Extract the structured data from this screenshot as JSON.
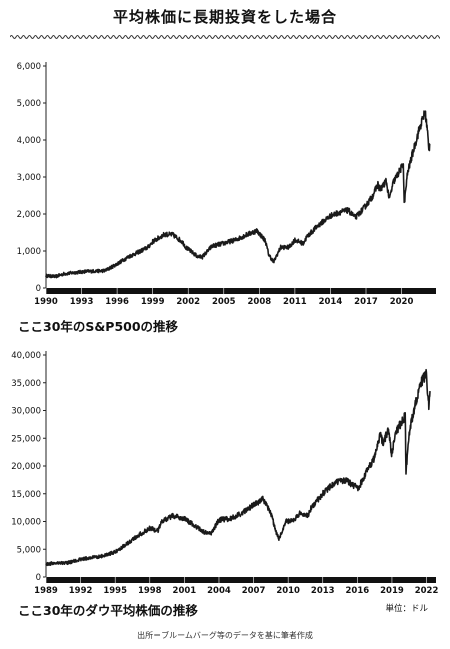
{
  "title": "平均株価に長期投資をした場合",
  "unit_label": "単位：ドル",
  "source": "出所＝ブルームバーグ等のデータを基に筆者作成",
  "line_color": "#1a1a1a",
  "chart_data": [
    {
      "type": "line",
      "caption": "ここ30年のS&P500の推移",
      "xlim": [
        1990,
        2022.4
      ],
      "ylim": [
        0,
        6000
      ],
      "yticks": [
        0,
        1000,
        2000,
        3000,
        4000,
        5000,
        6000
      ],
      "ytick_labels": [
        "0",
        "1,000",
        "2,000",
        "3,000",
        "4,000",
        "5,000",
        "6,000"
      ],
      "xticks": [
        1990,
        1993,
        1996,
        1999,
        2002,
        2005,
        2008,
        2011,
        2014,
        2017,
        2020
      ],
      "xtick_labels": [
        "1990",
        "1993",
        "1996",
        "1999",
        "2002",
        "2005",
        "2008",
        "2011",
        "2014",
        "2017",
        "2020"
      ],
      "series": [
        {
          "x": [
            1990.0,
            1990.8,
            1991.5,
            1992.5,
            1993.5,
            1994.5,
            1995.0,
            1996.0,
            1997.0,
            1997.8,
            1998.6,
            1999.0,
            1999.5,
            2000.0,
            2000.7,
            2001.5,
            2001.8,
            2002.5,
            2002.8,
            2003.2,
            2004.0,
            2005.0,
            2006.0,
            2007.0,
            2007.8,
            2008.5,
            2008.8,
            2009.2,
            2009.8,
            2010.5,
            2011.0,
            2011.7,
            2012.0,
            2013.0,
            2014.0,
            2014.8,
            2015.5,
            2016.1,
            2016.8,
            2017.5,
            2018.0,
            2018.2,
            2018.7,
            2018.97,
            2019.3,
            2019.9,
            2020.15,
            2020.22,
            2020.5,
            2020.9,
            2021.5,
            2021.99,
            2022.2,
            2022.3,
            2022.4
          ],
          "y": [
            330,
            310,
            380,
            420,
            450,
            460,
            470,
            650,
            850,
            970,
            1100,
            1250,
            1350,
            1450,
            1440,
            1250,
            1100,
            920,
            850,
            840,
            1130,
            1210,
            1300,
            1450,
            1550,
            1280,
            900,
            700,
            1100,
            1100,
            1300,
            1200,
            1380,
            1700,
            1950,
            2050,
            2100,
            1900,
            2150,
            2450,
            2800,
            2650,
            2900,
            2400,
            2850,
            3200,
            3350,
            2250,
            3100,
            3600,
            4300,
            4760,
            4200,
            3700,
            3900
          ]
        }
      ]
    },
    {
      "type": "line",
      "caption": "ここ30年のダウ平均株価の推移",
      "xlim": [
        1989,
        2022.3
      ],
      "ylim": [
        0,
        40000
      ],
      "yticks": [
        0,
        5000,
        10000,
        15000,
        20000,
        25000,
        30000,
        35000,
        40000
      ],
      "ytick_labels": [
        "0",
        "5,000",
        "10,000",
        "15,000",
        "20,000",
        "25,000",
        "30,000",
        "35,000",
        "40,000"
      ],
      "xticks": [
        1989,
        1992,
        1995,
        1998,
        2001,
        2004,
        2007,
        2010,
        2013,
        2016,
        2019,
        2022
      ],
      "xtick_labels": [
        "1989",
        "1992",
        "1995",
        "1998",
        "2001",
        "2004",
        "2007",
        "2010",
        "2013",
        "2016",
        "2019",
        "2022"
      ],
      "series": [
        {
          "x": [
            1989.0,
            1990.0,
            1990.8,
            1992.0,
            1993.0,
            1994.0,
            1995.0,
            1996.0,
            1997.0,
            1998.0,
            1998.7,
            1999.0,
            2000.0,
            2001.0,
            2001.7,
            2002.8,
            2003.3,
            2004.0,
            2005.0,
            2006.0,
            2007.0,
            2007.8,
            2008.5,
            2008.9,
            2009.2,
            2009.8,
            2010.5,
            2011.0,
            2011.7,
            2012.0,
            2013.0,
            2014.0,
            2015.0,
            2015.6,
            2016.1,
            2016.8,
            2017.5,
            2018.0,
            2018.2,
            2018.7,
            2018.97,
            2019.3,
            2020.0,
            2020.15,
            2020.22,
            2020.5,
            2020.9,
            2021.5,
            2021.99,
            2022.1,
            2022.2,
            2022.3
          ],
          "y": [
            2300,
            2600,
            2500,
            3200,
            3500,
            3800,
            4500,
            6000,
            7500,
            8800,
            8300,
            10000,
            11000,
            10500,
            9500,
            8000,
            7800,
            10300,
            10500,
            11500,
            13000,
            14000,
            11500,
            8500,
            6800,
            10000,
            10200,
            11500,
            11000,
            12500,
            15000,
            17000,
            17500,
            16500,
            16000,
            19000,
            21500,
            26000,
            24000,
            26500,
            22000,
            26000,
            28500,
            29500,
            19000,
            26000,
            30000,
            35000,
            36500,
            33000,
            31000,
            33500
          ]
        }
      ]
    }
  ]
}
